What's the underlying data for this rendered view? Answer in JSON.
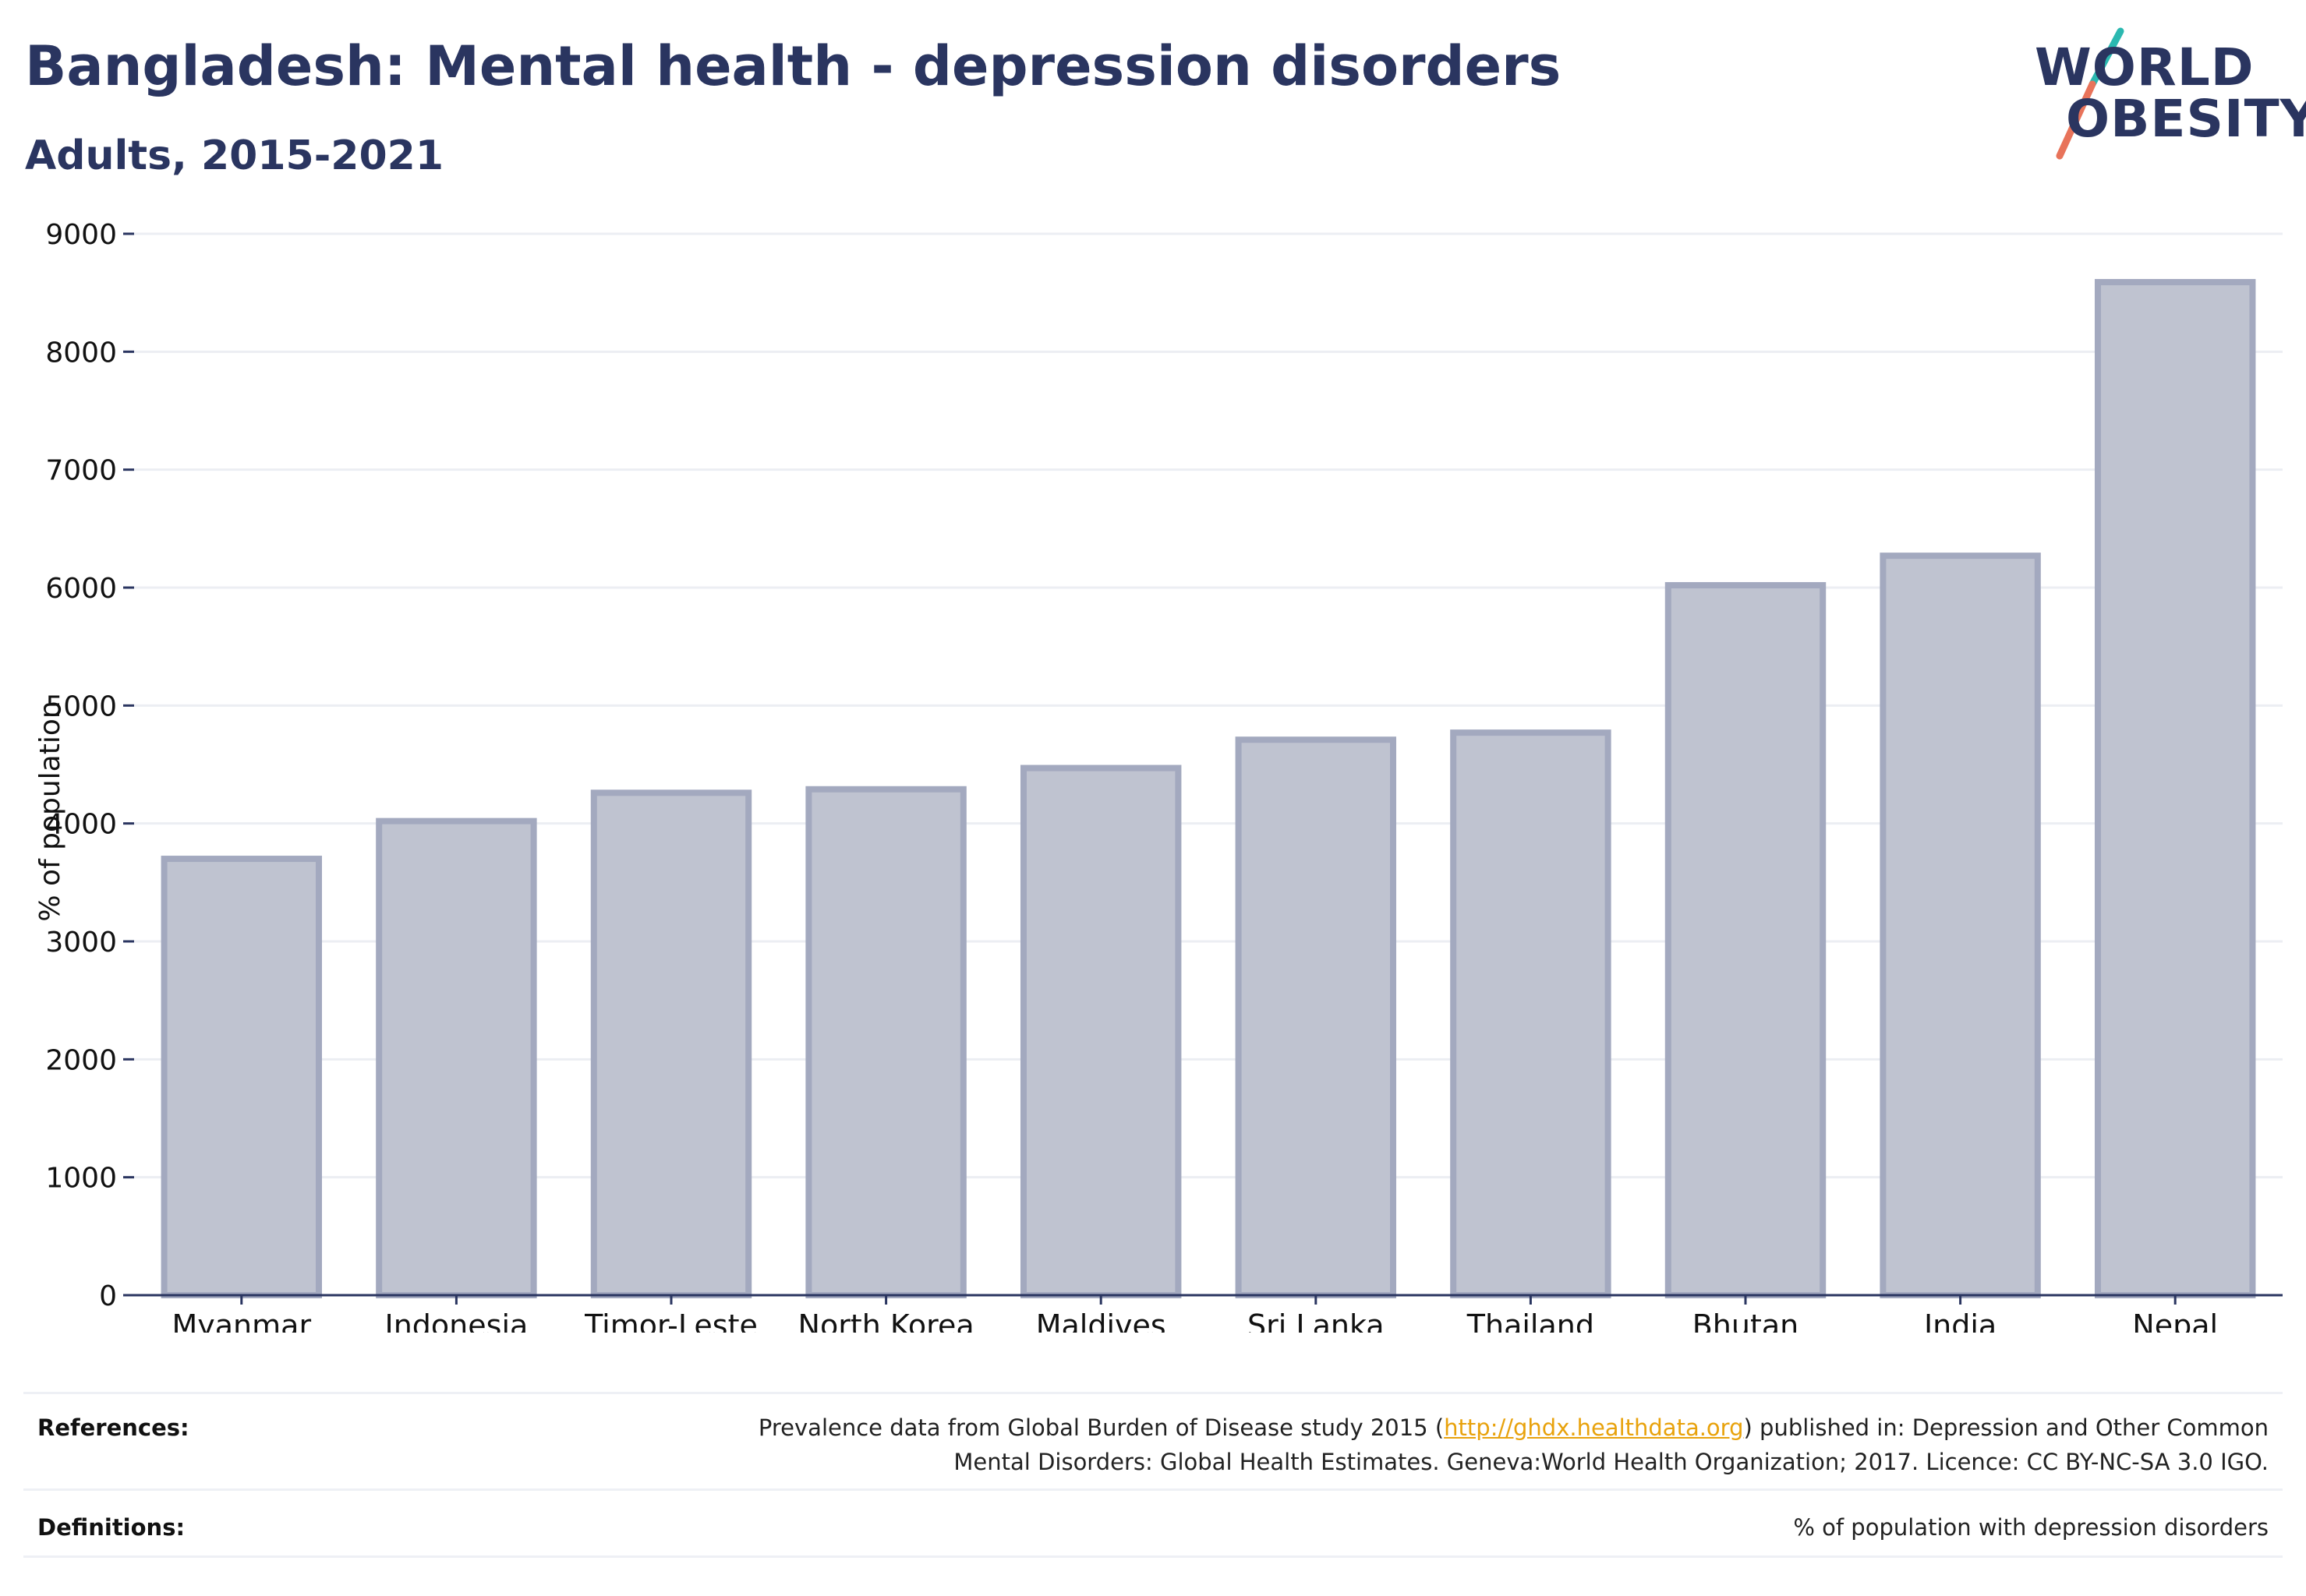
{
  "header": {
    "title": "Bangladesh: Mental health - depression disorders",
    "subtitle": "Adults, 2015-2021"
  },
  "logo": {
    "line1": "WORLD",
    "line2": "OBESITY",
    "text_color": "#2a3560",
    "slash_top_color": "#2bb8b0",
    "slash_bottom_color": "#e8735a"
  },
  "chart_data": {
    "type": "bar",
    "categories": [
      "Myanmar",
      "Indonesia",
      "Timor-Leste",
      "North Korea",
      "Maldives",
      "Sri Lanka",
      "Thailand",
      "Bhutan",
      "India",
      "Nepal"
    ],
    "values": [
      3700,
      4020,
      4260,
      4290,
      4470,
      4710,
      4770,
      6020,
      6270,
      8590
    ],
    "title": "",
    "xlabel": "",
    "ylabel": "% of population",
    "ylim": [
      0,
      9000
    ],
    "yticks": [
      "0",
      "1000",
      "2000",
      "3000",
      "4000",
      "5000",
      "6000",
      "7000",
      "8000",
      "9000"
    ],
    "grid": true,
    "bar_fill": "#bfc3d0",
    "bar_stroke": "#a3a9bf",
    "axis_color": "#2a3560"
  },
  "footer": {
    "references_label": "References:",
    "references_before": "Prevalence data from Global Burden of Disease study 2015 (",
    "references_link": "http://ghdx.healthdata.org",
    "references_after": ") published in: Depression and Other Common",
    "references_line2": "Mental Disorders: Global Health Estimates. Geneva:World Health Organization; 2017. Licence: CC BY-NC-SA 3.0 IGO.",
    "definitions_label": "Definitions:",
    "definitions_text": "% of population with depression disorders"
  }
}
